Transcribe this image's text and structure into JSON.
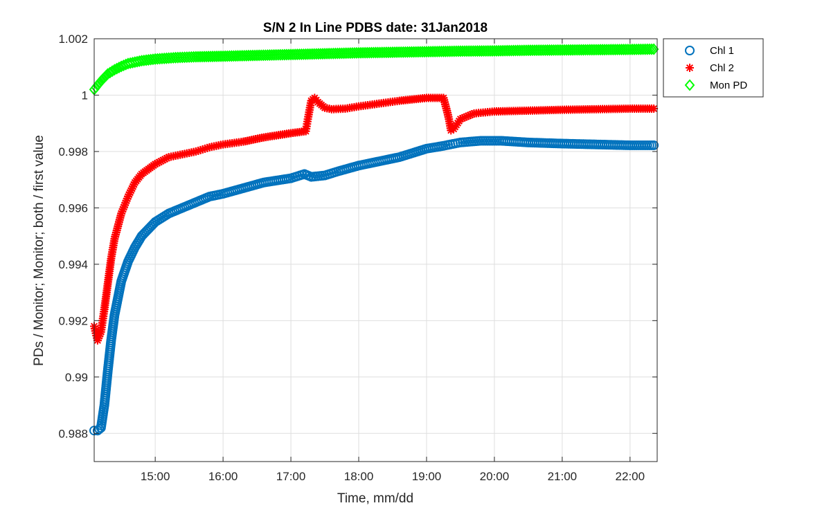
{
  "chart_data": {
    "type": "scatter",
    "title": "S/N 2 In Line PDBS date: 31Jan2018",
    "xlabel": "Time, mm/dd",
    "ylabel": "PDs / Monitor; Monitor; both / first value",
    "x_unit": "hours",
    "xlim": [
      14.1,
      22.4
    ],
    "ylim": [
      0.987,
      1.002
    ],
    "x_ticks": [
      15,
      16,
      17,
      18,
      19,
      20,
      21,
      22
    ],
    "x_tick_labels": [
      "15:00",
      "16:00",
      "17:00",
      "18:00",
      "19:00",
      "20:00",
      "21:00",
      "22:00"
    ],
    "y_ticks": [
      0.988,
      0.99,
      0.992,
      0.994,
      0.996,
      0.998,
      1.0,
      1.002
    ],
    "y_tick_labels": [
      "0.988",
      "0.99",
      "0.992",
      "0.994",
      "0.996",
      "0.998",
      "1",
      "1.002"
    ],
    "grid": true,
    "legend_position": "outside-top-right",
    "series": [
      {
        "name": "Chl 1",
        "marker": "circle",
        "color": "#0072BD",
        "points": [
          [
            14.1,
            0.9881
          ],
          [
            14.15,
            0.9881
          ],
          [
            14.2,
            0.9882
          ],
          [
            14.25,
            0.989
          ],
          [
            14.3,
            0.9902
          ],
          [
            14.35,
            0.9913
          ],
          [
            14.4,
            0.9922
          ],
          [
            14.45,
            0.9928
          ],
          [
            14.5,
            0.9934
          ],
          [
            14.6,
            0.9941
          ],
          [
            14.7,
            0.9946
          ],
          [
            14.8,
            0.995
          ],
          [
            15.0,
            0.9955
          ],
          [
            15.2,
            0.9958
          ],
          [
            15.4,
            0.996
          ],
          [
            15.6,
            0.9962
          ],
          [
            15.8,
            0.9964
          ],
          [
            16.0,
            0.9965
          ],
          [
            16.3,
            0.9967
          ],
          [
            16.6,
            0.9969
          ],
          [
            17.0,
            0.99705
          ],
          [
            17.2,
            0.9972
          ],
          [
            17.3,
            0.9971
          ],
          [
            17.5,
            0.99715
          ],
          [
            17.7,
            0.9973
          ],
          [
            18.0,
            0.9975
          ],
          [
            18.3,
            0.99765
          ],
          [
            18.6,
            0.9978
          ],
          [
            19.0,
            0.9981
          ],
          [
            19.25,
            0.9982
          ],
          [
            19.35,
            0.99825
          ],
          [
            19.5,
            0.99832
          ],
          [
            19.8,
            0.99838
          ],
          [
            20.1,
            0.99838
          ],
          [
            20.5,
            0.99832
          ],
          [
            21.0,
            0.99828
          ],
          [
            21.5,
            0.99825
          ],
          [
            22.0,
            0.99822
          ],
          [
            22.35,
            0.99822
          ]
        ]
      },
      {
        "name": "Chl 2",
        "marker": "asterisk",
        "color": "#FF0000",
        "points": [
          [
            14.1,
            0.9918
          ],
          [
            14.15,
            0.9913
          ],
          [
            14.2,
            0.9916
          ],
          [
            14.25,
            0.9924
          ],
          [
            14.3,
            0.9933
          ],
          [
            14.35,
            0.9942
          ],
          [
            14.4,
            0.9949
          ],
          [
            14.5,
            0.9958
          ],
          [
            14.6,
            0.9964
          ],
          [
            14.7,
            0.9969
          ],
          [
            14.8,
            0.9972
          ],
          [
            15.0,
            0.99755
          ],
          [
            15.2,
            0.9978
          ],
          [
            15.4,
            0.9979
          ],
          [
            15.6,
            0.998
          ],
          [
            15.8,
            0.99815
          ],
          [
            16.0,
            0.99825
          ],
          [
            16.3,
            0.99835
          ],
          [
            16.6,
            0.9985
          ],
          [
            17.0,
            0.99865
          ],
          [
            17.22,
            0.99872
          ],
          [
            17.25,
            0.99915
          ],
          [
            17.3,
            0.9998
          ],
          [
            17.35,
            0.9999
          ],
          [
            17.4,
            0.99975
          ],
          [
            17.5,
            0.99955
          ],
          [
            17.6,
            0.9995
          ],
          [
            17.8,
            0.99952
          ],
          [
            18.0,
            0.9996
          ],
          [
            18.3,
            0.9997
          ],
          [
            18.6,
            0.9998
          ],
          [
            19.0,
            0.9999
          ],
          [
            19.25,
            0.9999
          ],
          [
            19.3,
            0.99945
          ],
          [
            19.33,
            0.99915
          ],
          [
            19.36,
            0.99875
          ],
          [
            19.4,
            0.9988
          ],
          [
            19.5,
            0.99915
          ],
          [
            19.7,
            0.99935
          ],
          [
            20.0,
            0.99942
          ],
          [
            20.5,
            0.99945
          ],
          [
            21.0,
            0.99948
          ],
          [
            21.5,
            0.9995
          ],
          [
            22.0,
            0.99952
          ],
          [
            22.35,
            0.99952
          ]
        ]
      },
      {
        "name": "Mon PD",
        "marker": "diamond",
        "color": "#00FF00",
        "points": [
          [
            14.1,
            1.0002
          ],
          [
            14.15,
            1.00035
          ],
          [
            14.2,
            1.0005
          ],
          [
            14.3,
            1.00075
          ],
          [
            14.4,
            1.0009
          ],
          [
            14.5,
            1.00102
          ],
          [
            14.6,
            1.00112
          ],
          [
            14.8,
            1.00122
          ],
          [
            15.0,
            1.00128
          ],
          [
            15.3,
            1.00133
          ],
          [
            15.6,
            1.00136
          ],
          [
            16.0,
            1.00138
          ],
          [
            16.5,
            1.00141
          ],
          [
            17.0,
            1.00144
          ],
          [
            17.5,
            1.00147
          ],
          [
            18.0,
            1.0015
          ],
          [
            18.5,
            1.00152
          ],
          [
            19.0,
            1.00154
          ],
          [
            19.5,
            1.00156
          ],
          [
            20.0,
            1.00157
          ],
          [
            20.5,
            1.00159
          ],
          [
            21.0,
            1.0016
          ],
          [
            21.5,
            1.00161
          ],
          [
            22.0,
            1.00162
          ],
          [
            22.35,
            1.00163
          ]
        ]
      }
    ]
  }
}
